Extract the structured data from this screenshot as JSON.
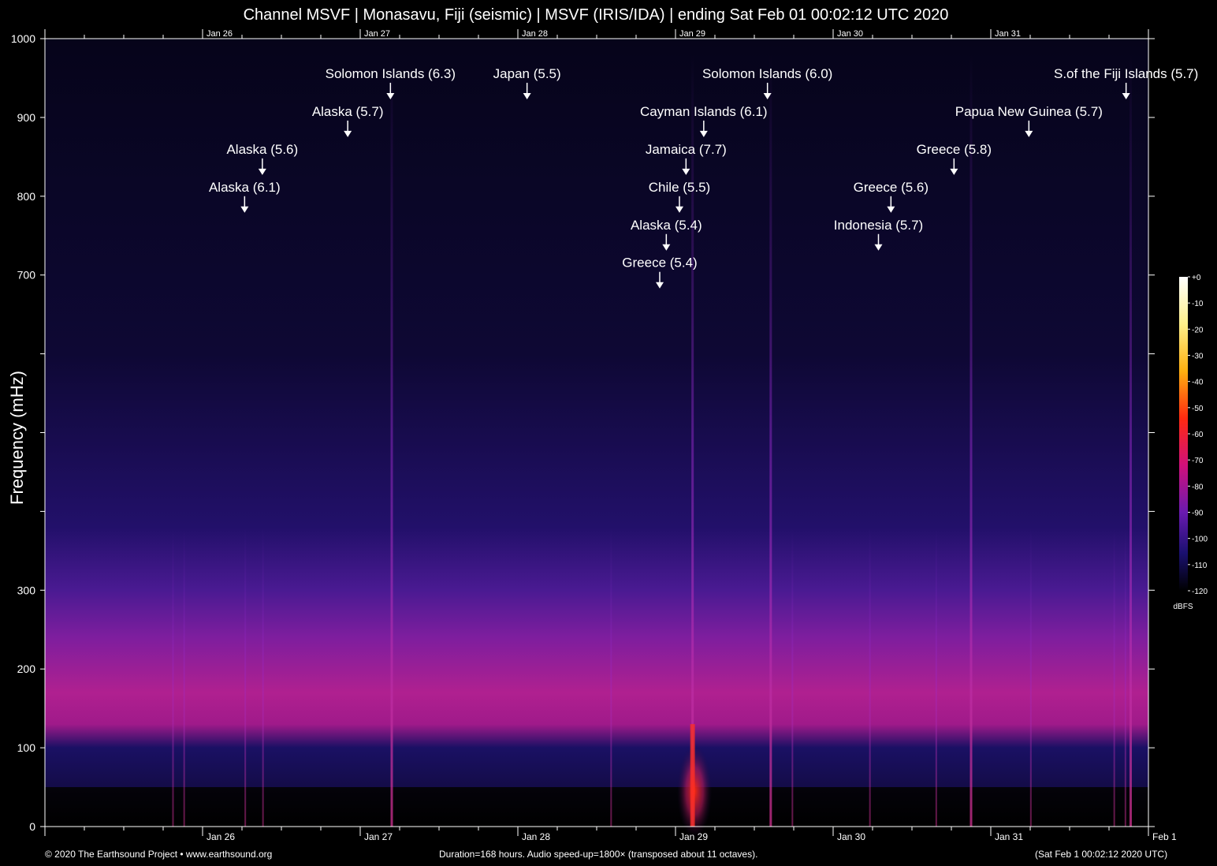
{
  "header": {
    "title": "Channel MSVF | Monasavu, Fiji (seismic) | MSVF (IRIS/IDA) | ending Sat Feb 01 00:02:12 UTC 2020"
  },
  "footer": {
    "copyright": "© 2020 The Earthsound Project • www.earthsound.org",
    "duration": "Duration=168 hours. Audio speed-up=1800× (transposed about 11 octaves).",
    "timestamp": "(Sat Feb  1 00:02:12 2020 UTC)"
  },
  "colors": {
    "background": "#000000",
    "axis": "#ffffff",
    "spectrum_low": "#10082e",
    "spectrum_mid": "#7a1aa0",
    "spectrum_high": "#c0208a",
    "spectrum_peak": "#ff2a1a"
  },
  "chart_data": {
    "type": "heatmap",
    "title": "Channel MSVF | Monasavu, Fiji (seismic) | MSVF (IRIS/IDA) | ending Sat Feb 01 00:02:12 UTC 2020",
    "xlabel": "",
    "ylabel": "Frequency (mHz)",
    "xlim_hours": [
      0,
      168
    ],
    "ylim": [
      0,
      1000
    ],
    "x_ticks": [
      {
        "label": "Jan 26",
        "hour": 24
      },
      {
        "label": "Jan 27",
        "hour": 48
      },
      {
        "label": "Jan 28",
        "hour": 72
      },
      {
        "label": "Jan 29",
        "hour": 96
      },
      {
        "label": "Jan 30",
        "hour": 120
      },
      {
        "label": "Jan 31",
        "hour": 144
      },
      {
        "label": "Feb  1",
        "hour": 168
      }
    ],
    "y_tick_values": [
      0,
      100,
      200,
      300,
      400,
      500,
      600,
      700,
      800,
      900,
      1000
    ],
    "y_tick_labels": [
      "0",
      "100",
      "200",
      "300",
      "",
      "",
      "",
      "700",
      "800",
      "900",
      "1000"
    ],
    "colorbar": {
      "unit": "dBFS",
      "ticks": [
        "+0",
        "-10",
        "-20",
        "-30",
        "-40",
        "-50",
        "-60",
        "-70",
        "-80",
        "-90",
        "-100",
        "-110",
        "-120"
      ]
    },
    "noise_band_mHz": [
      120,
      300
    ],
    "events": [
      {
        "label": "Alaska (6.1)",
        "hour": 30.4,
        "level": 800
      },
      {
        "label": "Alaska (5.6)",
        "hour": 33.1,
        "level": 848
      },
      {
        "label": "Alaska (5.7)",
        "hour": 46.1,
        "level": 896
      },
      {
        "label": "Solomon Islands (6.3)",
        "hour": 52.6,
        "level": 944
      },
      {
        "label": "Japan (5.5)",
        "hour": 73.4,
        "level": 944
      },
      {
        "label": "Cayman Islands (6.1)",
        "hour": 100.3,
        "level": 896
      },
      {
        "label": "Jamaica (7.7)",
        "hour": 97.6,
        "level": 848
      },
      {
        "label": "Chile (5.5)",
        "hour": 96.6,
        "level": 800
      },
      {
        "label": "Alaska (5.4)",
        "hour": 94.6,
        "level": 752
      },
      {
        "label": "Greece (5.4)",
        "hour": 93.6,
        "level": 704
      },
      {
        "label": "Solomon Islands (6.0)",
        "hour": 110.0,
        "level": 944
      },
      {
        "label": "Indonesia (5.7)",
        "hour": 126.9,
        "level": 752
      },
      {
        "label": "Greece (5.6)",
        "hour": 128.8,
        "level": 800
      },
      {
        "label": "Greece (5.8)",
        "hour": 138.4,
        "level": 848
      },
      {
        "label": "Papua New Guinea (5.7)",
        "hour": 149.8,
        "level": 896
      },
      {
        "label": "S.of the Fiji Islands (5.7)",
        "hour": 164.6,
        "level": 944
      }
    ],
    "streak_hours": [
      19.5,
      21.2,
      30.5,
      33.2,
      52.8,
      86.2,
      98.6,
      110.5,
      113.8,
      125.6,
      135.7,
      141.0,
      150.1,
      162.8,
      164.5,
      165.3
    ],
    "strong_streak_hours": [
      52.8,
      98.6,
      110.5,
      141.0,
      165.3
    ]
  }
}
